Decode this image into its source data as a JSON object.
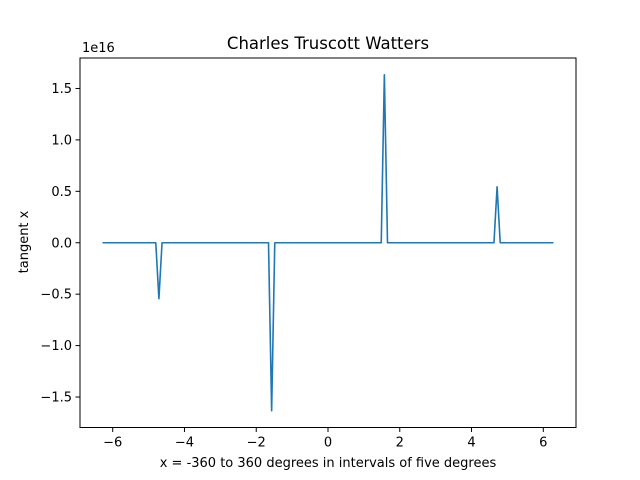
{
  "chart_data": {
    "type": "line",
    "title": "Charles Truscott Watters",
    "xlabel": "x = -360 to 360 degrees in intervals of five degrees",
    "ylabel": "tangent x",
    "y_offset_label": "1e16",
    "xlim": [
      -6.9115,
      6.9115
    ],
    "ylim": [
      -1.7963,
      1.7963
    ],
    "y_scale_exponent": 16,
    "x_ticks": [
      -6,
      -4,
      -2,
      0,
      2,
      4,
      6
    ],
    "x_tick_labels": [
      "−6",
      "−4",
      "−2",
      "0",
      "2",
      "4",
      "6"
    ],
    "y_ticks": [
      -1.5,
      -1.0,
      -0.5,
      0.0,
      0.5,
      1.0,
      1.5
    ],
    "y_tick_labels": [
      "−1.5",
      "−1.0",
      "−0.5",
      "0.0",
      "0.5",
      "1.0",
      "1.5"
    ],
    "grid": false,
    "series": [
      {
        "color": "#1f77b4",
        "points": [
          [
            -6.2832,
            0.0
          ],
          [
            -4.7997,
            0.0
          ],
          [
            -4.7124,
            -0.544
          ],
          [
            -4.6251,
            0.0
          ],
          [
            -1.6581,
            0.0
          ],
          [
            -1.5708,
            -1.633
          ],
          [
            -1.4835,
            0.0
          ],
          [
            1.4835,
            0.0
          ],
          [
            1.5708,
            1.633
          ],
          [
            1.6581,
            0.0
          ],
          [
            4.6251,
            0.0
          ],
          [
            4.7124,
            0.544
          ],
          [
            4.7997,
            0.0
          ],
          [
            6.2832,
            0.0
          ]
        ]
      }
    ]
  }
}
